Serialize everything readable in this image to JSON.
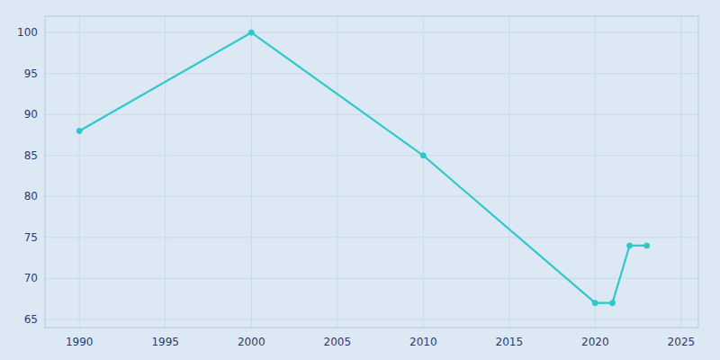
{
  "chart_data": {
    "type": "line",
    "x": [
      1990,
      2000,
      2010,
      2020,
      2021,
      2022,
      2023
    ],
    "values": [
      88,
      100,
      85,
      67,
      67,
      74,
      74
    ],
    "color": "#2dc9c9",
    "marker": "circle",
    "xlim": [
      1988,
      2026
    ],
    "ylim": [
      64,
      102
    ],
    "xticks": [
      1990,
      1995,
      2000,
      2005,
      2010,
      2015,
      2020,
      2025
    ],
    "yticks": [
      65,
      70,
      75,
      80,
      85,
      90,
      95,
      100
    ],
    "grid": true
  }
}
